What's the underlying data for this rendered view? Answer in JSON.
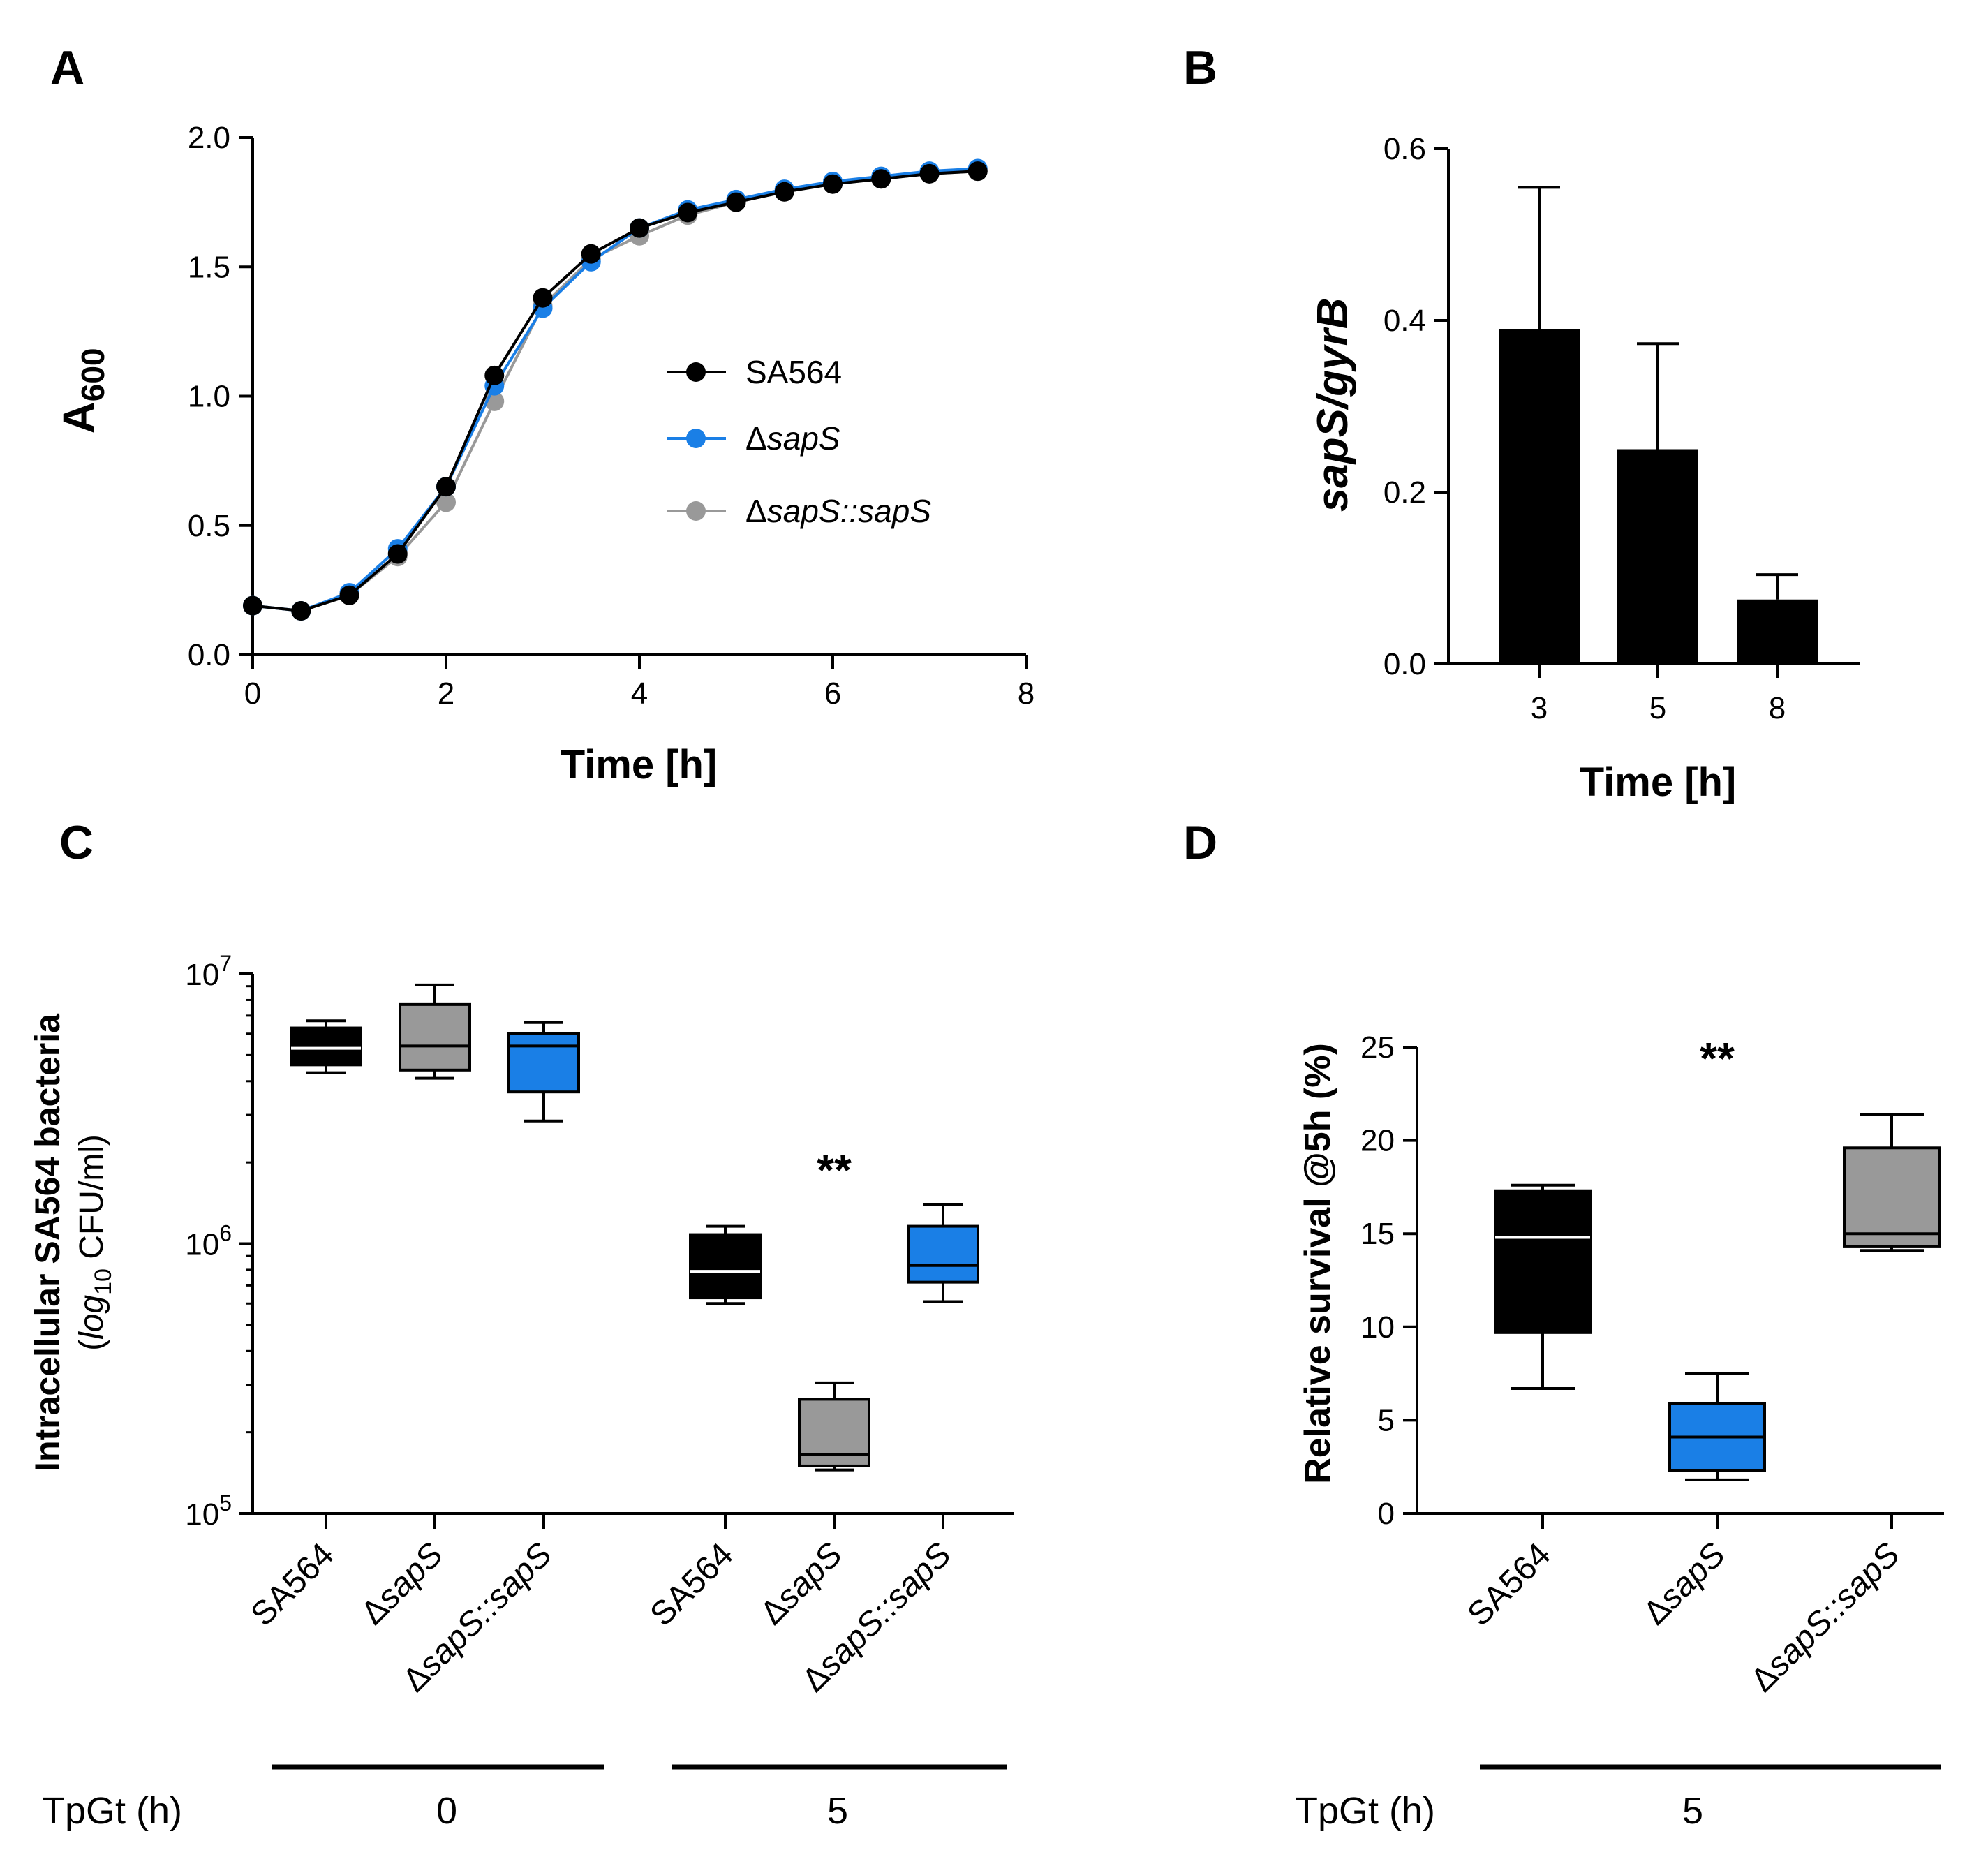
{
  "panels": {
    "A": "A",
    "B": "B",
    "C": "C",
    "D": "D"
  },
  "colors": {
    "sa564": "#000000",
    "dsaps": "#1a7fe6",
    "comp": "#999999"
  },
  "chart_data": [
    {
      "id": "A",
      "type": "line",
      "title": "",
      "xlabel": "Time [h]",
      "ylabel_main": "A",
      "ylabel_sub": "600",
      "xlim": [
        0,
        8
      ],
      "ylim": [
        0,
        2
      ],
      "xticks": [
        "0",
        "2",
        "4",
        "6",
        "8"
      ],
      "yticks": [
        "0.0",
        "0.5",
        "1.0",
        "1.5",
        "2.0"
      ],
      "x": [
        0,
        0.5,
        1,
        1.5,
        2,
        2.5,
        3,
        3.5,
        4,
        4.5,
        5,
        5.5,
        6,
        6.5,
        7,
        7.5
      ],
      "series": [
        {
          "name": "SA564",
          "name_prefix": "",
          "name_italic": "SA564",
          "italic": false,
          "color": "#000000",
          "values": [
            0.19,
            0.17,
            0.23,
            0.39,
            0.65,
            1.08,
            1.38,
            1.55,
            1.65,
            1.71,
            1.75,
            1.79,
            1.82,
            1.84,
            1.86,
            1.87
          ]
        },
        {
          "name": "ΔsapS",
          "name_prefix": "Δ",
          "name_italic": "sapS",
          "italic": true,
          "color": "#1a7fe6",
          "values": [
            0.19,
            0.17,
            0.24,
            0.41,
            0.65,
            1.04,
            1.34,
            1.52,
            1.65,
            1.72,
            1.76,
            1.8,
            1.83,
            1.85,
            1.87,
            1.88
          ]
        },
        {
          "name": "ΔsapS::sapS",
          "name_prefix": "Δ",
          "name_italic": "sapS::sapS",
          "italic": true,
          "color": "#999999",
          "values": [
            0.19,
            0.17,
            0.23,
            0.38,
            0.59,
            0.98,
            1.35,
            1.53,
            1.62,
            1.7,
            1.75,
            1.79,
            1.82,
            1.84,
            1.86,
            1.87
          ]
        }
      ],
      "legend": "center-right"
    },
    {
      "id": "B",
      "type": "bar",
      "xlabel": "Time [h]",
      "ylabel": "sapS/gyrB",
      "ylim": [
        0,
        0.6
      ],
      "yticks": [
        "0.0",
        "0.2",
        "0.4",
        "0.6"
      ],
      "categories": [
        "3",
        "5",
        "8"
      ],
      "values": [
        0.39,
        0.25,
        0.075
      ],
      "errors": [
        0.165,
        0.123,
        0.029
      ]
    },
    {
      "id": "C",
      "type": "box",
      "ylabel_line1": "Intracellular SA564 bacteria",
      "ylabel_line2_pre": "(",
      "ylabel_line2_log": "log",
      "ylabel_line2_sub": "10",
      "ylabel_line2_post": " CFU/ml)",
      "yscale": "log",
      "ylim": [
        100000,
        10000000
      ],
      "yticks": [
        {
          "base": "10",
          "exp": "7"
        },
        {
          "base": "10",
          "exp": "6"
        },
        {
          "base": "10",
          "exp": "5"
        }
      ],
      "groups": [
        {
          "label": "SA564",
          "prefix": "",
          "italic": "SA564",
          "italic_style": false,
          "tpgt": "0",
          "color": "#000000",
          "median_color": "#ffffff",
          "min": 4300000,
          "q1": 4600000,
          "median": 5300000,
          "q3": 6300000,
          "max": 6700000
        },
        {
          "label": "ΔsapS",
          "prefix": "Δ",
          "italic": "sapS",
          "italic_style": true,
          "tpgt": "0",
          "color": "#999999",
          "median_color": "#000000",
          "min": 4100000,
          "q1": 4400000,
          "median": 5400000,
          "q3": 7700000,
          "max": 9100000
        },
        {
          "label": "ΔsapS::sapS",
          "prefix": "Δ",
          "italic": "sapS::sapS",
          "italic_style": true,
          "tpgt": "0",
          "color": "#1a7fe6",
          "median_color": "#000000",
          "min": 2850000,
          "q1": 3650000,
          "median": 5400000,
          "q3": 6000000,
          "max": 6600000
        },
        {
          "label": "SA564",
          "prefix": "",
          "italic": "SA564",
          "italic_style": false,
          "tpgt": "5",
          "color": "#000000",
          "median_color": "#ffffff",
          "min": 600000,
          "q1": 630000,
          "median": 790000,
          "q3": 1080000,
          "max": 1160000
        },
        {
          "label": "ΔsapS",
          "prefix": "Δ",
          "italic": "sapS",
          "italic_style": true,
          "tpgt": "5",
          "color": "#999999",
          "median_color": "#000000",
          "min": 145000,
          "q1": 150000,
          "median": 165000,
          "q3": 265000,
          "max": 305000
        },
        {
          "label": "ΔsapS::sapS",
          "prefix": "Δ",
          "italic": "sapS::sapS",
          "italic_style": true,
          "tpgt": "5",
          "color": "#1a7fe6",
          "median_color": "#000000",
          "min": 610000,
          "q1": 720000,
          "median": 830000,
          "q3": 1160000,
          "max": 1400000
        }
      ],
      "annotations": [
        {
          "text": "**",
          "group_index": 4
        }
      ],
      "tpgt_label": "TpGt (h)",
      "tpgt_values": [
        "0",
        "5"
      ]
    },
    {
      "id": "D",
      "type": "box",
      "ylabel": "Relative survival @5h (%)",
      "ylim": [
        0,
        25
      ],
      "yticks": [
        "0",
        "5",
        "10",
        "15",
        "20",
        "25"
      ],
      "groups": [
        {
          "label": "SA564",
          "prefix": "",
          "italic": "SA564",
          "italic_style": false,
          "color": "#000000",
          "median_color": "#ffffff",
          "min": 6.7,
          "q1": 9.7,
          "median": 14.8,
          "q3": 17.3,
          "max": 17.6
        },
        {
          "label": "ΔsapS",
          "prefix": "Δ",
          "italic": "sapS",
          "italic_style": true,
          "color": "#1a7fe6",
          "median_color": "#000000",
          "min": 1.8,
          "q1": 2.3,
          "median": 4.1,
          "q3": 5.9,
          "max": 7.5
        },
        {
          "label": "ΔsapS::sapS",
          "prefix": "Δ",
          "italic": "sapS::sapS",
          "italic_style": true,
          "color": "#999999",
          "median_color": "#000000",
          "min": 14.1,
          "q1": 14.3,
          "median": 15.0,
          "q3": 19.6,
          "max": 21.4
        }
      ],
      "annotations": [
        {
          "text": "**",
          "group_index": 1
        }
      ],
      "tpgt_label": "TpGt (h)",
      "tpgt_value": "5"
    }
  ]
}
